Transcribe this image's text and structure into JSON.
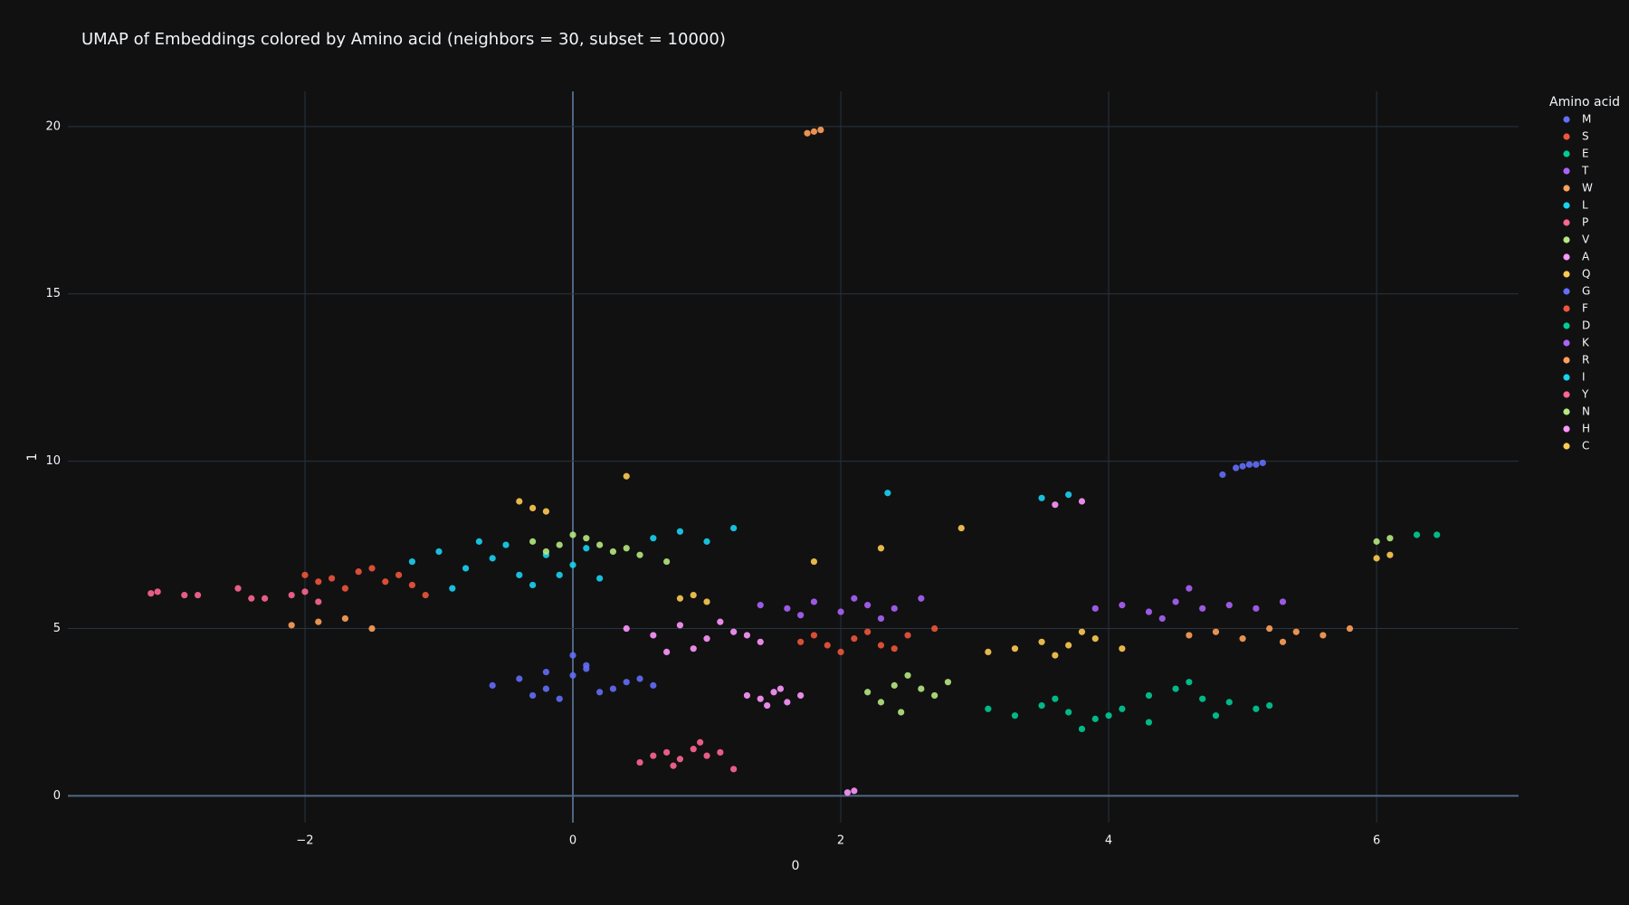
{
  "chart_data": {
    "type": "scatter",
    "title": "UMAP of Embeddings colored by Amino acid (neighbors = 30, subset = 10000)",
    "x_label": "0",
    "y_label": "1",
    "legend_title": "Amino acid",
    "xlim": [
      -3.77,
      7.06
    ],
    "ylim": [
      -0.8,
      21.05
    ],
    "xticks": [
      {
        "value": -2,
        "label": "−2"
      },
      0,
      2,
      4,
      6
    ],
    "yticks": [
      0,
      5,
      10,
      15,
      20
    ],
    "grid": true,
    "series": [
      {
        "name": "M",
        "color": "#636efa",
        "x": [
          -0.6,
          -0.4,
          -0.2,
          0,
          0.2,
          0.4,
          0.6,
          -0.3,
          0.1,
          0.3,
          -0.1,
          0.5
        ],
        "y": [
          3.3,
          3.5,
          3.2,
          3.6,
          3.1,
          3.4,
          3.3,
          3.0,
          3.9,
          3.2,
          2.9,
          3.5
        ]
      },
      {
        "name": "S",
        "color": "#EF553B",
        "x": [
          -2.0,
          -1.8,
          -1.6,
          -1.4,
          -1.2,
          -1.7,
          -1.5,
          -1.3,
          -1.9,
          -1.1
        ],
        "y": [
          6.6,
          6.5,
          6.7,
          6.4,
          6.3,
          6.2,
          6.8,
          6.6,
          6.4,
          6.0
        ]
      },
      {
        "name": "E",
        "color": "#00cc96",
        "x": [
          3.1,
          3.3,
          3.5,
          3.7,
          3.9,
          4.1,
          4.3,
          3.6,
          3.8,
          4.0
        ],
        "y": [
          2.6,
          2.4,
          2.7,
          2.5,
          2.3,
          2.6,
          2.2,
          2.9,
          2.0,
          2.4
        ]
      },
      {
        "name": "T",
        "color": "#ab63fa",
        "x": [
          1.4,
          1.6,
          1.8,
          2.0,
          2.2,
          2.4,
          2.6,
          1.7,
          2.1,
          2.3
        ],
        "y": [
          5.7,
          5.6,
          5.8,
          5.5,
          5.7,
          5.6,
          5.9,
          5.4,
          5.9,
          5.3
        ]
      },
      {
        "name": "W",
        "color": "#FFA15A",
        "x": [
          1.75,
          1.8,
          1.85
        ],
        "y": [
          19.8,
          19.85,
          19.9
        ]
      },
      {
        "name": "L",
        "color": "#19d3f3",
        "x": [
          -1.2,
          -1.0,
          -0.8,
          -0.6,
          -0.4,
          -0.2,
          0.0,
          0.2,
          -0.7,
          -0.3,
          0.1,
          -0.9
        ],
        "y": [
          7.0,
          7.3,
          6.8,
          7.1,
          6.6,
          7.2,
          6.9,
          6.5,
          7.6,
          6.3,
          7.4,
          6.2
        ]
      },
      {
        "name": "P",
        "color": "#FF6692",
        "x": [
          -3.15,
          -3.1,
          -2.9,
          -2.8,
          -2.5,
          -2.3,
          -2.1,
          -1.9,
          -2.4,
          -2.0
        ],
        "y": [
          6.05,
          6.1,
          6.0,
          6.0,
          6.2,
          5.9,
          6.0,
          5.8,
          5.9,
          6.1
        ]
      },
      {
        "name": "V",
        "color": "#B6E880",
        "x": [
          -0.3,
          -0.1,
          0.1,
          0.3,
          0.5,
          0.7,
          0.2,
          0.0,
          -0.2,
          0.4
        ],
        "y": [
          7.6,
          7.5,
          7.7,
          7.3,
          7.2,
          7.0,
          7.5,
          7.8,
          7.3,
          7.4
        ]
      },
      {
        "name": "A",
        "color": "#FF97FF",
        "x": [
          0.4,
          0.6,
          0.8,
          1.0,
          1.2,
          1.4,
          0.9,
          1.1,
          0.7,
          1.3
        ],
        "y": [
          5.0,
          4.8,
          5.1,
          4.7,
          4.9,
          4.6,
          4.4,
          5.2,
          4.3,
          4.8
        ]
      },
      {
        "name": "Q",
        "color": "#FECB52",
        "x": [
          3.1,
          3.3,
          3.5,
          3.7,
          3.9,
          4.1,
          3.6,
          3.8,
          -0.4,
          -0.3,
          -0.2,
          0.4,
          6.0,
          6.1
        ],
        "y": [
          4.3,
          4.4,
          4.6,
          4.5,
          4.7,
          4.4,
          4.2,
          4.9,
          8.8,
          8.6,
          8.5,
          9.55,
          7.1,
          7.2
        ]
      },
      {
        "name": "G",
        "color": "#636efa",
        "x": [
          4.95,
          5.0,
          5.05,
          5.1,
          5.15,
          4.85,
          0.0,
          0.1,
          -0.2
        ],
        "y": [
          9.8,
          9.85,
          9.9,
          9.9,
          9.95,
          9.6,
          4.2,
          3.8,
          3.7
        ]
      },
      {
        "name": "F",
        "color": "#EF553B",
        "x": [
          1.7,
          1.9,
          2.1,
          2.3,
          2.5,
          2.0,
          2.2,
          2.4,
          2.7,
          1.8
        ],
        "y": [
          4.6,
          4.5,
          4.7,
          4.5,
          4.8,
          4.3,
          4.9,
          4.4,
          5.0,
          4.8
        ]
      },
      {
        "name": "D",
        "color": "#00cc96",
        "x": [
          4.3,
          4.5,
          4.7,
          4.9,
          5.1,
          5.2,
          4.6,
          4.8,
          6.3,
          6.45
        ],
        "y": [
          3.0,
          3.2,
          2.9,
          2.8,
          2.6,
          2.7,
          3.4,
          2.4,
          7.8,
          7.8
        ]
      },
      {
        "name": "K",
        "color": "#ab63fa",
        "x": [
          3.9,
          4.1,
          4.3,
          4.5,
          4.7,
          4.9,
          5.1,
          5.3,
          4.6,
          4.4
        ],
        "y": [
          5.6,
          5.7,
          5.5,
          5.8,
          5.6,
          5.7,
          5.6,
          5.8,
          6.2,
          5.3
        ]
      },
      {
        "name": "R",
        "color": "#FFA15A",
        "x": [
          4.6,
          4.8,
          5.0,
          5.2,
          5.4,
          5.6,
          5.8,
          5.3,
          -2.1,
          -1.9,
          -1.7,
          -1.5
        ],
        "y": [
          4.8,
          4.9,
          4.7,
          5.0,
          4.9,
          4.8,
          5.0,
          4.6,
          5.1,
          5.2,
          5.3,
          5.0
        ]
      },
      {
        "name": "I",
        "color": "#19d3f3",
        "x": [
          0.6,
          0.8,
          1.0,
          1.2,
          3.5,
          3.7,
          2.35,
          -0.5,
          -0.1
        ],
        "y": [
          7.7,
          7.9,
          7.6,
          8.0,
          8.9,
          9.0,
          9.05,
          7.5,
          6.6
        ]
      },
      {
        "name": "Y",
        "color": "#FF6692",
        "x": [
          0.5,
          0.6,
          0.7,
          0.8,
          0.9,
          1.0,
          1.1,
          0.75,
          0.95,
          1.2
        ],
        "y": [
          1.0,
          1.2,
          1.3,
          1.1,
          1.4,
          1.2,
          1.3,
          0.9,
          1.6,
          0.8
        ]
      },
      {
        "name": "N",
        "color": "#B6E880",
        "x": [
          2.2,
          2.4,
          2.6,
          2.8,
          2.3,
          2.5,
          2.7,
          2.45,
          6.0,
          6.1
        ],
        "y": [
          3.1,
          3.3,
          3.2,
          3.4,
          2.8,
          3.6,
          3.0,
          2.5,
          7.6,
          7.7
        ]
      },
      {
        "name": "H",
        "color": "#FF97FF",
        "x": [
          1.3,
          1.4,
          1.5,
          1.6,
          1.7,
          1.45,
          1.55,
          2.05,
          2.1,
          3.6,
          3.8
        ],
        "y": [
          3.0,
          2.9,
          3.1,
          2.8,
          3.0,
          2.7,
          3.2,
          0.1,
          0.15,
          8.7,
          8.8
        ]
      },
      {
        "name": "C",
        "color": "#FECB52",
        "x": [
          0.8,
          0.9,
          1.0,
          1.8,
          2.3,
          2.9
        ],
        "y": [
          5.9,
          6.0,
          5.8,
          7.0,
          7.4,
          8.0
        ]
      }
    ]
  }
}
